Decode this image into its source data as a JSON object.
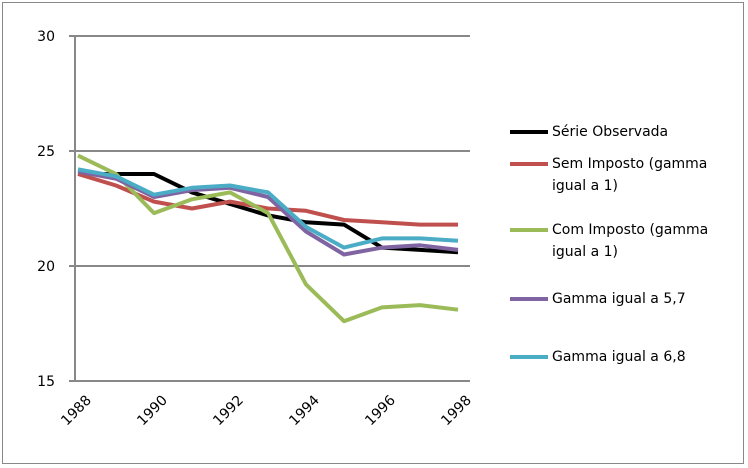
{
  "chart_data": {
    "type": "line",
    "x": [
      1988,
      1989,
      1990,
      1991,
      1992,
      1993,
      1994,
      1995,
      1996,
      1997,
      1998
    ],
    "xlim": [
      1988,
      1998
    ],
    "xticks": [
      1988,
      1990,
      1992,
      1994,
      1996,
      1998
    ],
    "ylim": [
      15,
      30
    ],
    "yticks": [
      15,
      20,
      25,
      30
    ],
    "grid": true,
    "legend": "right",
    "series": [
      {
        "name": "Série Observada",
        "color": "#000000",
        "values": [
          24.0,
          24.0,
          24.0,
          23.2,
          22.7,
          22.2,
          21.9,
          21.8,
          20.8,
          20.7,
          20.6
        ]
      },
      {
        "name": "Sem Imposto (gamma igual a 1)",
        "color": "#c0504d",
        "values": [
          24.0,
          23.5,
          22.8,
          22.5,
          22.8,
          22.5,
          22.4,
          22.0,
          21.9,
          21.8,
          21.8
        ]
      },
      {
        "name": "Com Imposto (gamma igual a 1)",
        "color": "#9bbb59",
        "values": [
          24.8,
          24.0,
          22.3,
          22.9,
          23.2,
          22.3,
          19.2,
          17.6,
          18.2,
          18.3,
          18.1
        ]
      },
      {
        "name": "Gamma igual a 5,7",
        "color": "#8064a2",
        "values": [
          24.1,
          23.8,
          23.0,
          23.3,
          23.4,
          23.0,
          21.5,
          20.5,
          20.8,
          20.9,
          20.7
        ]
      },
      {
        "name": "Gamma igual a 6,8",
        "color": "#4bacc6",
        "values": [
          24.2,
          23.9,
          23.1,
          23.4,
          23.5,
          23.2,
          21.7,
          20.8,
          21.2,
          21.2,
          21.1
        ]
      }
    ]
  }
}
